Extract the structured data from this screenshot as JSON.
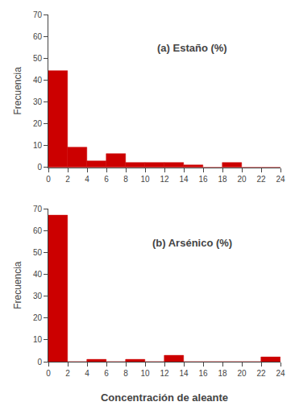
{
  "chart_data": [
    {
      "type": "histogram",
      "annotation": "(a) Estaño (%)",
      "bins": [
        0,
        2,
        4,
        6,
        8,
        10,
        12,
        14,
        16,
        18,
        20,
        22,
        24
      ],
      "values": [
        44,
        9,
        3,
        6,
        2,
        2,
        2,
        1,
        0,
        2,
        0,
        0
      ],
      "color": "#cc0000",
      "ylabel": "Frecuencia",
      "xlim": [
        0,
        24
      ],
      "xticks": [
        0,
        2,
        4,
        6,
        8,
        10,
        12,
        14,
        16,
        18,
        20,
        22,
        24
      ],
      "ylim": [
        0,
        70
      ],
      "yticks": [
        0,
        10,
        20,
        30,
        40,
        50,
        60,
        70
      ],
      "grid": false
    },
    {
      "type": "histogram",
      "annotation": "(b) Arsénico (%)",
      "bins": [
        0,
        2,
        4,
        6,
        8,
        10,
        12,
        14,
        16,
        18,
        20,
        22,
        24
      ],
      "values": [
        67,
        0,
        1,
        0,
        1,
        0,
        3,
        0,
        0,
        0,
        0,
        2
      ],
      "color": "#cc0000",
      "ylabel": "Frecuencia",
      "xlabel": "Concentración de aleante",
      "xlim": [
        0,
        24
      ],
      "xticks": [
        0,
        2,
        4,
        6,
        8,
        10,
        12,
        14,
        16,
        18,
        20,
        22,
        24
      ],
      "ylim": [
        0,
        70
      ],
      "yticks": [
        0,
        10,
        20,
        30,
        40,
        50,
        60,
        70
      ],
      "grid": false
    }
  ]
}
